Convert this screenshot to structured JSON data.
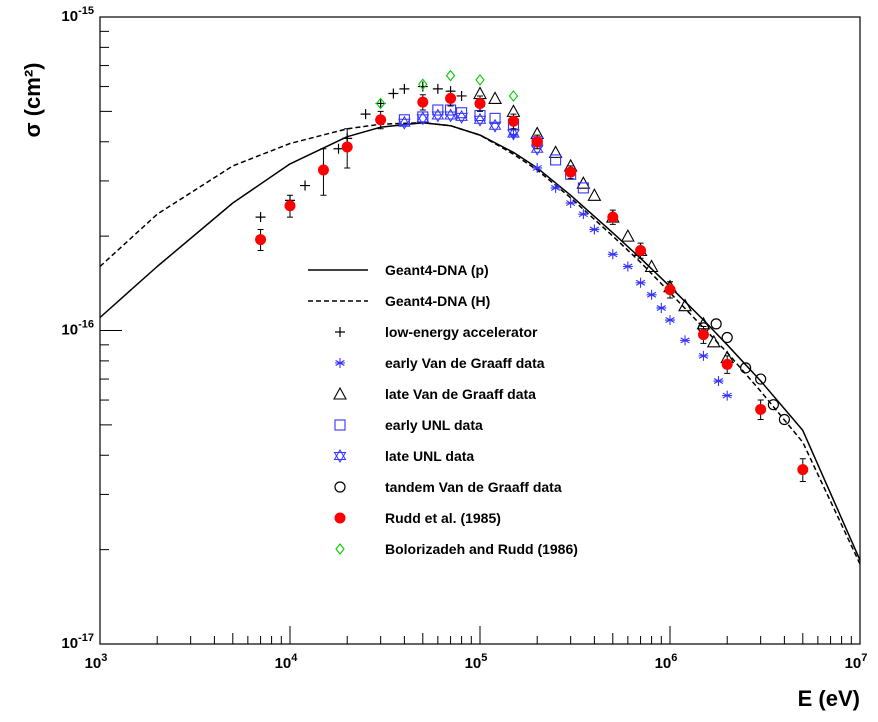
{
  "chart_data": {
    "type": "scatter",
    "xscale": "log",
    "yscale": "log",
    "xlim": [
      1000,
      10000000
    ],
    "ylim": [
      1e-17,
      1e-15
    ],
    "xlabel": "E (eV)",
    "ylabel": "σ (cm²)",
    "x_tick_labels": [
      {
        "value": 1000,
        "base": "10",
        "exp": "3"
      },
      {
        "value": 10000,
        "base": "10",
        "exp": "4"
      },
      {
        "value": 100000,
        "base": "10",
        "exp": "5"
      },
      {
        "value": 1000000,
        "base": "10",
        "exp": "6"
      },
      {
        "value": 10000000,
        "base": "10",
        "exp": "7"
      }
    ],
    "y_tick_labels": [
      {
        "value": 1e-17,
        "base": "10",
        "exp": "-17"
      },
      {
        "value": 1e-16,
        "base": "10",
        "exp": "-16"
      },
      {
        "value": 1e-15,
        "base": "10",
        "exp": "-15"
      }
    ],
    "series": [
      {
        "name": "Geant4-DNA (p)",
        "kind": "line",
        "style": "solid",
        "x": [
          1000,
          2000,
          5000,
          10000,
          20000,
          30000,
          50000,
          70000,
          100000,
          150000,
          200000,
          300000,
          500000,
          700000,
          1000000,
          1500000,
          2000000,
          3000000,
          5000000,
          10000000
        ],
        "y": [
          1.1e-16,
          1.6e-16,
          2.55e-16,
          3.4e-16,
          4.15e-16,
          4.45e-16,
          4.6e-16,
          4.5e-16,
          4.2e-16,
          3.7e-16,
          3.3e-16,
          2.7e-16,
          2.05e-16,
          1.7e-16,
          1.38e-16,
          1.08e-16,
          9e-17,
          6.9e-17,
          4.8e-17,
          1.85e-17
        ]
      },
      {
        "name": "Geant4-DNA (H)",
        "kind": "line",
        "style": "dashed",
        "x": [
          1000,
          2000,
          5000,
          10000,
          20000,
          30000,
          50000,
          70000,
          100000,
          150000,
          200000,
          300000,
          500000,
          700000,
          1000000,
          1500000,
          2000000,
          3000000,
          5000000,
          10000000
        ],
        "y": [
          1.6e-16,
          2.35e-16,
          3.35e-16,
          3.95e-16,
          4.4e-16,
          4.55e-16,
          4.6e-16,
          4.5e-16,
          4.2e-16,
          3.65e-16,
          3.25e-16,
          2.65e-16,
          2e-16,
          1.65e-16,
          1.32e-16,
          1.02e-16,
          8.5e-17,
          6.4e-17,
          4.4e-17,
          1.8e-17
        ]
      },
      {
        "name": "low-energy accelerator",
        "kind": "marker",
        "marker": "plus",
        "color": "#000000",
        "x": [
          7000,
          10000,
          12000,
          15000,
          18000,
          20000,
          25000,
          30000,
          35000,
          40000,
          50000,
          60000,
          70000,
          80000,
          100000
        ],
        "y": [
          2.3e-16,
          2.6e-16,
          2.9e-16,
          3.3e-16,
          3.8e-16,
          4.1e-16,
          4.9e-16,
          5.3e-16,
          5.7e-16,
          5.9e-16,
          6e-16,
          5.9e-16,
          5.8e-16,
          5.6e-16,
          5.2e-16
        ]
      },
      {
        "name": "early Van de Graaff data",
        "kind": "marker",
        "marker": "asterisk",
        "color": "#3333ff",
        "x": [
          150000,
          200000,
          250000,
          300000,
          350000,
          400000,
          500000,
          600000,
          700000,
          800000,
          900000,
          1000000,
          1200000,
          1500000,
          1800000,
          2000000
        ],
        "y": [
          4.2e-16,
          3.3e-16,
          2.85e-16,
          2.55e-16,
          2.35e-16,
          2.1e-16,
          1.75e-16,
          1.6e-16,
          1.42e-16,
          1.3e-16,
          1.18e-16,
          1.08e-16,
          9.3e-17,
          8.3e-17,
          6.9e-17,
          6.2e-17
        ]
      },
      {
        "name": "late Van de Graaff data",
        "kind": "marker",
        "marker": "triangle",
        "color": "#000000",
        "x": [
          100000,
          120000,
          150000,
          200000,
          250000,
          300000,
          350000,
          400000,
          500000,
          600000,
          700000,
          800000,
          1000000,
          1200000,
          1500000,
          1700000,
          2000000
        ],
        "y": [
          5.7e-16,
          5.5e-16,
          5e-16,
          4.25e-16,
          3.7e-16,
          3.35e-16,
          2.95e-16,
          2.7e-16,
          2.3e-16,
          2e-16,
          1.8e-16,
          1.6e-16,
          1.38e-16,
          1.2e-16,
          1.05e-16,
          9.2e-17,
          8.2e-17
        ]
      },
      {
        "name": "early UNL data",
        "kind": "marker",
        "marker": "square",
        "color": "#3333ff",
        "x": [
          40000,
          50000,
          60000,
          70000,
          80000,
          100000,
          120000,
          150000,
          200000,
          250000,
          300000,
          350000
        ],
        "y": [
          4.7e-16,
          4.8e-16,
          5.05e-16,
          5.05e-16,
          4.95e-16,
          4.85e-16,
          4.75e-16,
          4.55e-16,
          4e-16,
          3.5e-16,
          3.15e-16,
          2.85e-16
        ]
      },
      {
        "name": "late UNL data",
        "kind": "marker",
        "marker": "star",
        "color": "#3333ff",
        "x": [
          40000,
          50000,
          60000,
          70000,
          80000,
          100000,
          120000,
          150000,
          200000
        ],
        "y": [
          4.6e-16,
          4.75e-16,
          4.85e-16,
          4.85e-16,
          4.8e-16,
          4.7e-16,
          4.5e-16,
          4.25e-16,
          3.8e-16
        ]
      },
      {
        "name": "tandem Van de Graaff data",
        "kind": "marker",
        "marker": "circle",
        "color": "#000000",
        "x": [
          1500000,
          1750000,
          2000000,
          2500000,
          3000000,
          3500000,
          4000000
        ],
        "y": [
          1.02e-16,
          1.05e-16,
          9.5e-17,
          7.6e-17,
          7e-17,
          5.8e-17,
          5.2e-17
        ]
      },
      {
        "name": "Rudd et al. (1985)",
        "kind": "marker",
        "marker": "filled-circle",
        "color": "#ff0000",
        "x": [
          7000,
          10000,
          15000,
          20000,
          30000,
          50000,
          70000,
          100000,
          150000,
          200000,
          300000,
          500000,
          700000,
          1000000,
          1500000,
          2000000,
          3000000,
          5000000
        ],
        "y": [
          1.95e-16,
          2.5e-16,
          3.25e-16,
          3.85e-16,
          4.7e-16,
          5.35e-16,
          5.5e-16,
          5.3e-16,
          4.65e-16,
          4e-16,
          3.2e-16,
          2.3e-16,
          1.8e-16,
          1.35e-16,
          9.7e-17,
          7.8e-17,
          5.6e-17,
          3.6e-17
        ],
        "yerr": [
          1.5e-17,
          2e-17,
          5.5e-17,
          5.5e-17,
          3e-17,
          3e-17,
          3e-17,
          3e-17,
          2.5e-17,
          2e-17,
          1.5e-17,
          1.2e-17,
          1e-17,
          8e-18,
          6e-18,
          5e-18,
          4e-18,
          3e-18
        ]
      },
      {
        "name": "Bolorizadeh and Rudd (1986)",
        "kind": "marker",
        "marker": "diamond",
        "color": "#00cc00",
        "x": [
          30000,
          50000,
          70000,
          100000,
          150000
        ],
        "y": [
          5.3e-16,
          6.1e-16,
          6.5e-16,
          6.3e-16,
          5.6e-16
        ]
      }
    ],
    "legend_position": "center"
  }
}
